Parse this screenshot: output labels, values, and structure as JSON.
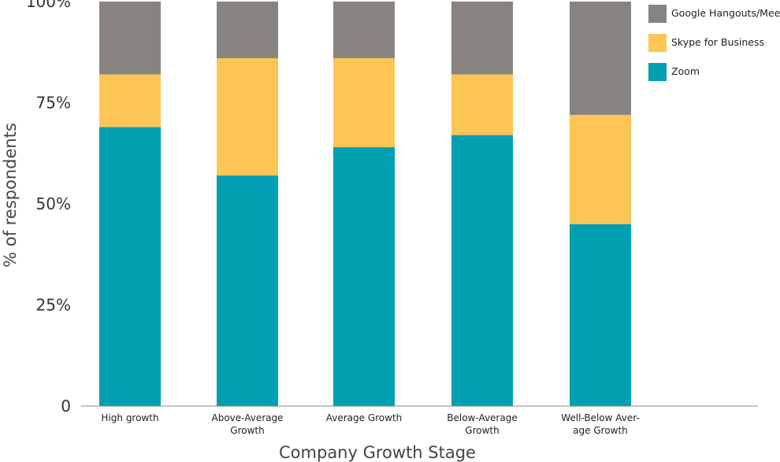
{
  "chart_data": {
    "type": "bar",
    "stacked": true,
    "title": "",
    "xlabel": "Company Growth Stage",
    "ylabel": "% of respondents",
    "ylim": [
      0,
      100
    ],
    "yticks": [
      {
        "value": 0,
        "label": "0"
      },
      {
        "value": 25,
        "label": "25%"
      },
      {
        "value": 50,
        "label": "50%"
      },
      {
        "value": 75,
        "label": "75%"
      },
      {
        "value": 100,
        "label": "100%"
      }
    ],
    "categories": [
      [
        "High growth"
      ],
      [
        "Above-Average",
        "Growth"
      ],
      [
        "Average Growth"
      ],
      [
        "Below-Average",
        "Growth"
      ],
      [
        "Well-Below Aver-",
        "age Growth"
      ]
    ],
    "series": [
      {
        "name": "Zoom",
        "color": "#009fb2",
        "values": [
          69,
          57,
          64,
          67,
          45
        ]
      },
      {
        "name": "Skype for Business",
        "color": "#fdc555",
        "values": [
          13,
          29,
          22,
          15,
          27
        ]
      },
      {
        "name": "Google Hangouts/Meet",
        "color": "#878380",
        "values": [
          18,
          14,
          14,
          18,
          28
        ]
      }
    ],
    "legend_order": [
      "Google Hangouts/Meet",
      "Skype for Business",
      "Zoom"
    ],
    "legend_position": "top-right",
    "grid": false
  }
}
